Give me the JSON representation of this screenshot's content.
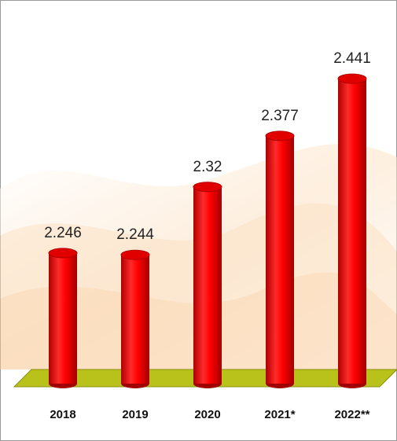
{
  "chart_data": {
    "type": "bar",
    "categories": [
      "2018",
      "2019",
      "2020",
      "2021*",
      "2022**"
    ],
    "values": [
      2.246,
      2.244,
      2.32,
      2.377,
      2.441
    ],
    "color": "#ff0000",
    "ylim": [
      2.1,
      2.5
    ]
  }
}
